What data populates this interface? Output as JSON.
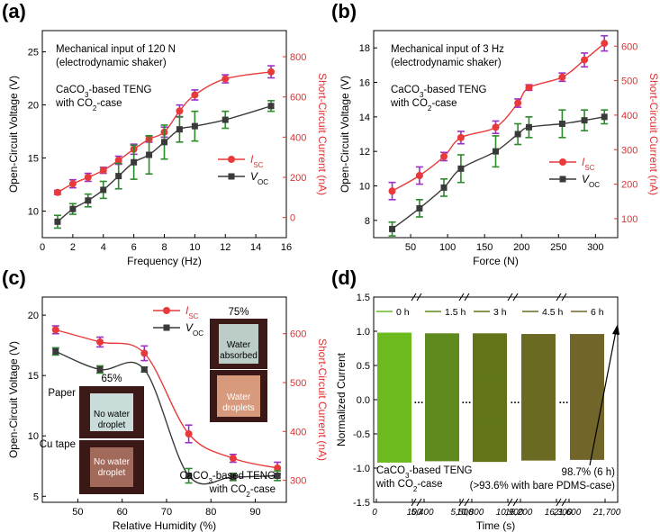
{
  "chart_data": [
    {
      "panel": "(a)",
      "type": "line",
      "note_line1": "Mechanical input of 120 N",
      "note_line2": "(electrodynamic shaker)",
      "teng_line1": "CaCO3-based TENG",
      "teng_line2": "with CO2-case",
      "xlabel": "Frequency (Hz)",
      "ylabel_left": "Open-Circuit Voltage (V)",
      "ylabel_right": "Short-Circuit Current (nA)",
      "xlim": [
        0,
        16
      ],
      "ylim_left": [
        7.5,
        27
      ],
      "ylim_right": [
        -100,
        930
      ],
      "xticks": [
        0,
        2,
        4,
        6,
        8,
        10,
        12,
        14,
        16
      ],
      "yticks_left": [
        10,
        15,
        20,
        25
      ],
      "yticks_right": [
        0,
        200,
        400,
        600,
        800
      ],
      "series": [
        {
          "name": "I_SC",
          "legend_main": "I",
          "legend_sub": "SC",
          "axis": "right",
          "color": "#e83a3a",
          "x": [
            1,
            2,
            3,
            4,
            5,
            6,
            7,
            8,
            9,
            10,
            12,
            15
          ],
          "y": [
            125,
            168,
            200,
            235,
            285,
            340,
            390,
            425,
            530,
            610,
            690,
            725
          ],
          "err": [
            10,
            20,
            20,
            15,
            20,
            25,
            15,
            25,
            30,
            25,
            20,
            30
          ]
        },
        {
          "name": "V_OC",
          "legend_main": "V",
          "legend_sub": "OC",
          "axis": "left",
          "color": "#3a3a3a",
          "x": [
            1,
            2,
            3,
            4,
            5,
            6,
            7,
            8,
            9,
            10,
            12,
            15
          ],
          "y": [
            9.0,
            10.2,
            11.0,
            12.0,
            13.3,
            14.6,
            15.3,
            16.5,
            17.7,
            18.0,
            18.6,
            19.9
          ],
          "err": [
            0.6,
            0.5,
            0.6,
            0.8,
            1.2,
            1.6,
            1.8,
            1.6,
            1.2,
            1.4,
            0.8,
            0.5
          ]
        }
      ]
    },
    {
      "panel": "(b)",
      "type": "line",
      "note_line1": "Mechanical input of 3 Hz",
      "note_line2": "(electrodynamic shaker)",
      "teng_line1": "CaCO3-based TENG",
      "teng_line2": "with CO2-case",
      "xlabel": "Force (N)",
      "ylabel_left": "Open-Circuit Voltage (V)",
      "ylabel_right": "Short-Circuit Current (nA)",
      "xlim": [
        0,
        330
      ],
      "ylim_left": [
        7,
        19
      ],
      "ylim_right": [
        45,
        645
      ],
      "xticks": [
        50,
        100,
        150,
        200,
        250,
        300
      ],
      "yticks_left": [
        8,
        10,
        12,
        14,
        16,
        18
      ],
      "yticks_right": [
        100,
        200,
        300,
        400,
        500,
        600
      ],
      "series": [
        {
          "name": "I_SC",
          "legend_main": "I",
          "legend_sub": "SC",
          "axis": "right",
          "color": "#e83a3a",
          "x": [
            25,
            62,
            95,
            118,
            165,
            195,
            210,
            255,
            285,
            312
          ],
          "y": [
            180,
            225,
            280,
            335,
            365,
            435,
            480,
            510,
            560,
            608
          ],
          "err": [
            25,
            25,
            12,
            18,
            18,
            12,
            8,
            12,
            20,
            22
          ]
        },
        {
          "name": "V_OC",
          "legend_main": "V",
          "legend_sub": "OC",
          "axis": "left",
          "color": "#3a3a3a",
          "x": [
            25,
            62,
            95,
            118,
            165,
            195,
            210,
            255,
            285,
            312
          ],
          "y": [
            7.5,
            8.7,
            9.9,
            11.0,
            12.0,
            13.0,
            13.4,
            13.6,
            13.8,
            14.0
          ],
          "err": [
            0.4,
            0.5,
            0.5,
            0.8,
            0.9,
            0.6,
            0.6,
            0.8,
            0.6,
            0.4
          ]
        }
      ]
    },
    {
      "panel": "(c)",
      "type": "line",
      "label_65": "65%",
      "label_75": "75%",
      "paper": "Paper",
      "cutape": "Cu tape",
      "photo_no_water_1a": "No water",
      "photo_no_water_1b": "droplet",
      "photo_no_water_2a": "No water",
      "photo_no_water_2b": "droplet",
      "photo_water_abs_a": "Water",
      "photo_water_abs_b": "absorbed",
      "photo_water_drop_a": "Water",
      "photo_water_drop_b": "droplets",
      "teng_line1": "CaCO3-based TENG",
      "teng_line2": "with CO2-case",
      "xlabel": "Relative Humidity (%)",
      "ylabel_left": "Open-Circuit Voltage (V)",
      "ylabel_right": "Short-Circuit Current (nA)",
      "xlim": [
        42,
        97
      ],
      "ylim_left": [
        4.5,
        21.5
      ],
      "ylim_right": [
        255,
        675
      ],
      "xticks": [
        50,
        60,
        70,
        80,
        90
      ],
      "yticks_left": [
        5,
        10,
        15,
        20
      ],
      "yticks_right": [
        300,
        400,
        500,
        600
      ],
      "series": [
        {
          "name": "I_SC",
          "legend_main": "I",
          "legend_sub": "SC",
          "axis": "right",
          "color": "#e83a3a",
          "x": [
            45,
            55,
            65,
            75,
            85,
            95
          ],
          "y": [
            608,
            583,
            560,
            395,
            345,
            325
          ],
          "err": [
            8,
            10,
            15,
            18,
            8,
            12
          ]
        },
        {
          "name": "V_OC",
          "legend_main": "V",
          "legend_sub": "OC",
          "axis": "left",
          "color": "#3a3a3a",
          "x": [
            45,
            55,
            65,
            75,
            85,
            95
          ],
          "y": [
            17.0,
            15.5,
            15.5,
            6.7,
            6.6,
            6.7
          ],
          "err": [
            0.3,
            0.3,
            0.2,
            0.6,
            0.3,
            0.4
          ]
        }
      ]
    },
    {
      "panel": "(d)",
      "type": "area",
      "ylabel": "Normalized Current",
      "xlabel": "Time (s)",
      "ylim": [
        -1.5,
        1.5
      ],
      "yticks": [
        "1.5",
        "1.0",
        "0.5",
        "0.0",
        "-0.5",
        "-1.0",
        "-1.5"
      ],
      "xtick_labels": [
        "0",
        "100",
        "5,400",
        "5,500",
        "10,800",
        "10,900",
        "16,200",
        "16,300",
        "21,600",
        "21,700"
      ],
      "series": [
        {
          "name": "0 h",
          "color": "#6dba1f",
          "peak": 0.98,
          "trough": -0.92
        },
        {
          "name": "1.5 h",
          "color": "#5f8a1e",
          "peak": 0.97,
          "trough": -0.9
        },
        {
          "name": "3 h",
          "color": "#617419",
          "peak": 0.97,
          "trough": -0.91
        },
        {
          "name": "4.5 h",
          "color": "#6a6a22",
          "peak": 0.96,
          "trough": -0.89
        },
        {
          "name": "6 h",
          "color": "#72652a",
          "peak": 0.96,
          "trough": -0.88
        }
      ],
      "ellipsis": "…",
      "teng_line1": "CaCO3-based TENG",
      "teng_line2": "with CO2-case",
      "annot_line1": "98.7% (6 h)",
      "annot_line2": "(>93.6% with bare PDMS-case)"
    }
  ]
}
